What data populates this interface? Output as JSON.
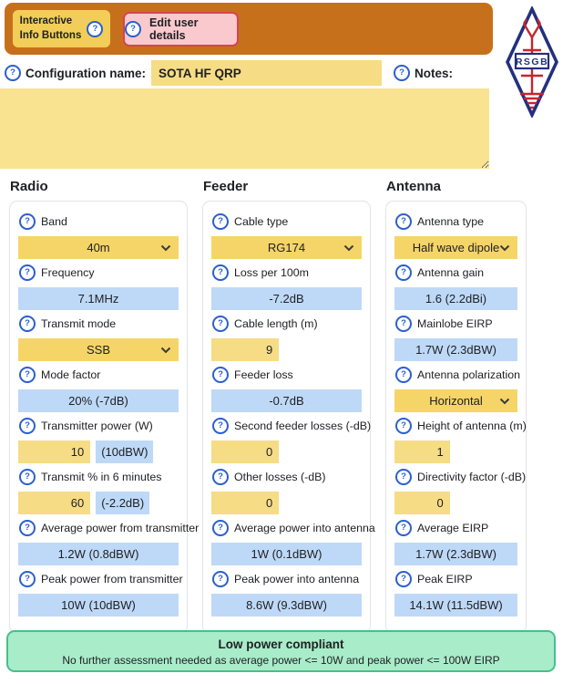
{
  "header": {
    "info_button": {
      "line1": "Interactive",
      "line2": "Info Buttons"
    },
    "edit_user_button": {
      "label": "Edit user details"
    },
    "logo_text": "RSGB"
  },
  "config": {
    "label": "Configuration name:",
    "value": "SOTA HF QRP",
    "notes_label": "Notes:",
    "notes_value": ""
  },
  "columns": [
    {
      "title": "Radio",
      "fields": [
        {
          "label": "Band",
          "type": "select",
          "value": "40m"
        },
        {
          "label": "Frequency",
          "type": "readonly",
          "value": "7.1MHz"
        },
        {
          "label": "Transmit mode",
          "type": "select",
          "value": "SSB"
        },
        {
          "label": "Mode factor",
          "type": "readonly",
          "value": "20% (-7dB)"
        },
        {
          "label": "Transmitter power (W)",
          "type": "input-badge",
          "value": "10",
          "badge": "(10dBW)"
        },
        {
          "label": "Transmit % in 6 minutes",
          "type": "input-badge",
          "value": "60",
          "badge": "(-2.2dB)"
        },
        {
          "label": "Average power from transmitter",
          "type": "readonly",
          "value": "1.2W (0.8dBW)"
        },
        {
          "label": "Peak power from transmitter",
          "type": "readonly",
          "value": "10W (10dBW)"
        }
      ]
    },
    {
      "title": "Feeder",
      "fields": [
        {
          "label": "Cable type",
          "type": "select",
          "value": "RG174"
        },
        {
          "label": "Loss per 100m",
          "type": "readonly",
          "value": "-7.2dB"
        },
        {
          "label": "Cable length (m)",
          "type": "input",
          "value": "9"
        },
        {
          "label": "Feeder loss",
          "type": "readonly",
          "value": "-0.7dB"
        },
        {
          "label": "Second feeder losses (-dB)",
          "type": "input",
          "value": "0"
        },
        {
          "label": "Other losses (-dB)",
          "type": "input",
          "value": "0"
        },
        {
          "label": "Average power into antenna",
          "type": "readonly",
          "value": "1W (0.1dBW)"
        },
        {
          "label": "Peak power into antenna",
          "type": "readonly",
          "value": "8.6W (9.3dBW)"
        }
      ]
    },
    {
      "title": "Antenna",
      "fields": [
        {
          "label": "Antenna type",
          "type": "select",
          "value": "Half wave dipole"
        },
        {
          "label": "Antenna gain",
          "type": "readonly",
          "value": "1.6 (2.2dBi)"
        },
        {
          "label": "Mainlobe EIRP",
          "type": "readonly",
          "value": "1.7W (2.3dBW)"
        },
        {
          "label": "Antenna polarization",
          "type": "select",
          "value": "Horizontal"
        },
        {
          "label": "Height of antenna (m)",
          "type": "input",
          "value": "1"
        },
        {
          "label": "Directivity factor (-dB)",
          "type": "input",
          "value": "0"
        },
        {
          "label": "Average EIRP",
          "type": "readonly",
          "value": "1.7W (2.3dBW)"
        },
        {
          "label": "Peak EIRP",
          "type": "readonly",
          "value": "14.1W (11.5dBW)"
        }
      ]
    }
  ],
  "compliance": {
    "title": "Low power compliant",
    "subtitle": "No further assessment needed as average power <= 10W and peak power <= 100W EIRP"
  },
  "colors": {
    "header_orange": "#C7701B",
    "button_gold": "#F2CE58",
    "button_pink": "#F9C9CE",
    "button_pink_border": "#D8434E",
    "input_yellow": "#F6DC85",
    "select_gold": "#F5D567",
    "readonly_blue": "#BED9F7",
    "notes_yellow": "#F9E391",
    "banner_green": "#A9ECCA",
    "banner_green_border": "#45C08D",
    "help_blue": "#2B5FCE",
    "logo_navy": "#23307E",
    "logo_red": "#C6262E"
  },
  "icons": {
    "help": "question-circle",
    "select_chevron": "chevron-down"
  }
}
